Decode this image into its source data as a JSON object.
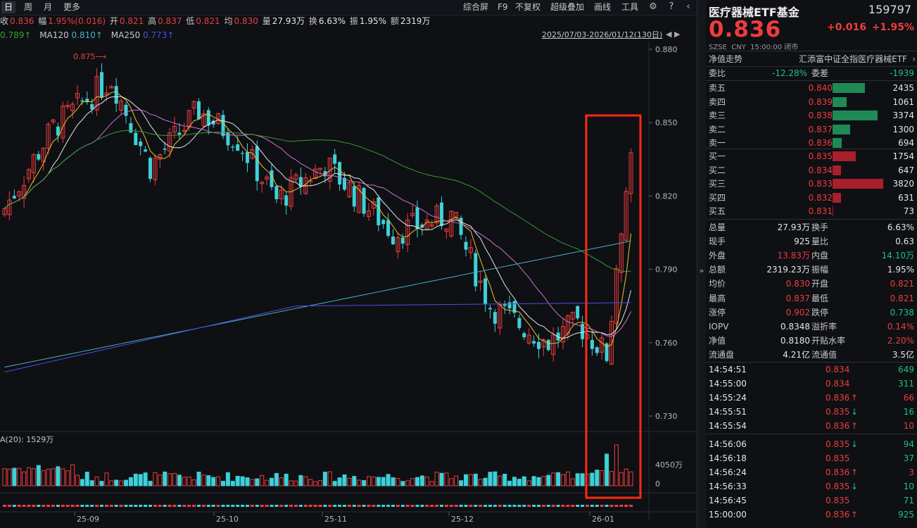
{
  "toolbar": {
    "period_tabs": [
      "日",
      "周",
      "月",
      "更多"
    ],
    "right_buttons": [
      "综合屏",
      "F9",
      "不复权",
      "超级叠加",
      "画线",
      "工具"
    ]
  },
  "info": {
    "close_label": "收",
    "close_value": "0.836",
    "change_label": "幅",
    "change_value": "1.95%(0.016)",
    "open_label": "开",
    "open_value": "0.821",
    "high_label": "高",
    "high_value": "0.837",
    "low_label": "低",
    "low_value": "0.821",
    "avg_label": "均",
    "avg_value": "0.830",
    "volume_label": "量",
    "volume_value": "27.93万",
    "turnover_label": "换",
    "turnover_value": "6.63%",
    "amplitude_label": "振",
    "amplitude_value": "1.95%",
    "amount_label": "额",
    "amount_value": "2319万"
  },
  "ma_row": {
    "ma_first_value": "0.789↑",
    "ma120_label": "MA120",
    "ma120_value": "0.810↑",
    "ma250_label": "MA250",
    "ma250_value": "0.773↑"
  },
  "range_text": "2025/07/03-2026/01/12(130日)",
  "price_axis": [
    "0.880",
    "0.850",
    "0.820",
    "0.790",
    "0.760",
    "0.730"
  ],
  "max_marker": "0.875",
  "volume_label": "A(20): 1529万",
  "volume_axis": [
    "4050万",
    "0"
  ],
  "date_axis": [
    "25-09",
    "25-10",
    "25-11",
    "25-12",
    "26-01"
  ],
  "colors": {
    "up": "#f03c3c",
    "down": "#3dd1d8",
    "ma5": "#e8e8e8",
    "ma10": "#f0c030",
    "ma20": "#d070d0",
    "ma60": "#3a9a3a",
    "ma120": "#4ab0c0",
    "ma250": "#4a50e0",
    "highlight": "#ff2a10"
  },
  "quote": {
    "name": "医疗器械ETF基金",
    "code": "159797",
    "price": "0.836",
    "change": "+0.016",
    "change_pct": "+1.95%",
    "exchange": "SZSE",
    "currency": "CNY",
    "time": "15:00:00",
    "status": "闭市",
    "tab_nav": "净值走势",
    "fund_full_name": "汇添富中证全指医疗器械ETF"
  },
  "committee": {
    "ratio_label": "委比",
    "ratio_value": "-12.28%",
    "diff_label": "委差",
    "diff_value": "-1939"
  },
  "order_book": {
    "asks": [
      {
        "label": "卖五",
        "price": "0.840",
        "volume": "2435",
        "vol_num": 2435
      },
      {
        "label": "卖四",
        "price": "0.839",
        "volume": "1061",
        "vol_num": 1061
      },
      {
        "label": "卖三",
        "price": "0.838",
        "volume": "3374",
        "vol_num": 3374
      },
      {
        "label": "卖二",
        "price": "0.837",
        "volume": "1300",
        "vol_num": 1300
      },
      {
        "label": "卖一",
        "price": "0.836",
        "volume": "694",
        "vol_num": 694
      }
    ],
    "bids": [
      {
        "label": "买一",
        "price": "0.835",
        "volume": "1754",
        "vol_num": 1754
      },
      {
        "label": "买二",
        "price": "0.834",
        "volume": "647",
        "vol_num": 647
      },
      {
        "label": "买三",
        "price": "0.833",
        "volume": "3820",
        "vol_num": 3820
      },
      {
        "label": "买四",
        "price": "0.832",
        "volume": "631",
        "vol_num": 631
      },
      {
        "label": "买五",
        "price": "0.831",
        "volume": "73",
        "vol_num": 73
      }
    ]
  },
  "stats": [
    {
      "l1": "总量",
      "v1": "27.93万",
      "c1": "white",
      "l2": "换手",
      "v2": "6.63%",
      "c2": "white"
    },
    {
      "l1": "现手",
      "v1": "925",
      "c1": "white",
      "l2": "量比",
      "v2": "0.63",
      "c2": "white"
    },
    {
      "l1": "外盘",
      "v1": "13.83万",
      "c1": "red",
      "l2": "内盘",
      "v2": "14.10万",
      "c2": "green"
    },
    {
      "l1": "总额",
      "v1": "2319.23万",
      "c1": "white",
      "l2": "振幅",
      "v2": "1.95%",
      "c2": "white"
    },
    {
      "l1": "均价",
      "v1": "0.830",
      "c1": "red",
      "l2": "开盘",
      "v2": "0.821",
      "c2": "red"
    },
    {
      "l1": "最高",
      "v1": "0.837",
      "c1": "red",
      "l2": "最低",
      "v2": "0.821",
      "c2": "red"
    },
    {
      "l1": "涨停",
      "v1": "0.902",
      "c1": "red",
      "l2": "跌停",
      "v2": "0.738",
      "c2": "green"
    },
    {
      "l1": "IOPV",
      "v1": "0.8348",
      "c1": "white",
      "l2": "溢折率",
      "v2": "0.14%",
      "c2": "red"
    },
    {
      "l1": "净值",
      "v1": "0.8180",
      "c1": "white",
      "l2": "开贴水率",
      "v2": "2.20%",
      "c2": "red"
    },
    {
      "l1": "流通盘",
      "v1": "4.21亿",
      "c1": "white",
      "l2": "流通值",
      "v2": "3.5亿",
      "c2": "white"
    }
  ],
  "ticks": [
    {
      "time": "14:54:51",
      "price": "0.834",
      "arrow": "",
      "vol": "649",
      "vc": "green"
    },
    {
      "time": "14:55:00",
      "price": "0.834",
      "arrow": "",
      "vol": "311",
      "vc": "green"
    },
    {
      "time": "14:55:24",
      "price": "0.836",
      "arrow": "↑",
      "vol": "66",
      "vc": "red"
    },
    {
      "time": "14:55:51",
      "price": "0.835",
      "arrow": "↓",
      "vol": "16",
      "vc": "green"
    },
    {
      "time": "14:55:54",
      "price": "0.836",
      "arrow": "↑",
      "vol": "10",
      "vc": "red"
    },
    {
      "time": "14:56:06",
      "price": "0.835",
      "arrow": "↓",
      "vol": "94",
      "vc": "green"
    },
    {
      "time": "14:56:18",
      "price": "0.835",
      "arrow": "",
      "vol": "37",
      "vc": "green"
    },
    {
      "time": "14:56:24",
      "price": "0.836",
      "arrow": "↑",
      "vol": "3",
      "vc": "red"
    },
    {
      "time": "14:56:33",
      "price": "0.835",
      "arrow": "↓",
      "vol": "10",
      "vc": "green"
    },
    {
      "time": "14:56:45",
      "price": "0.835",
      "arrow": "",
      "vol": "71",
      "vc": "green"
    },
    {
      "time": "15:00:00",
      "price": "0.836",
      "arrow": "↑",
      "vol": "925",
      "vc": "green"
    }
  ]
}
